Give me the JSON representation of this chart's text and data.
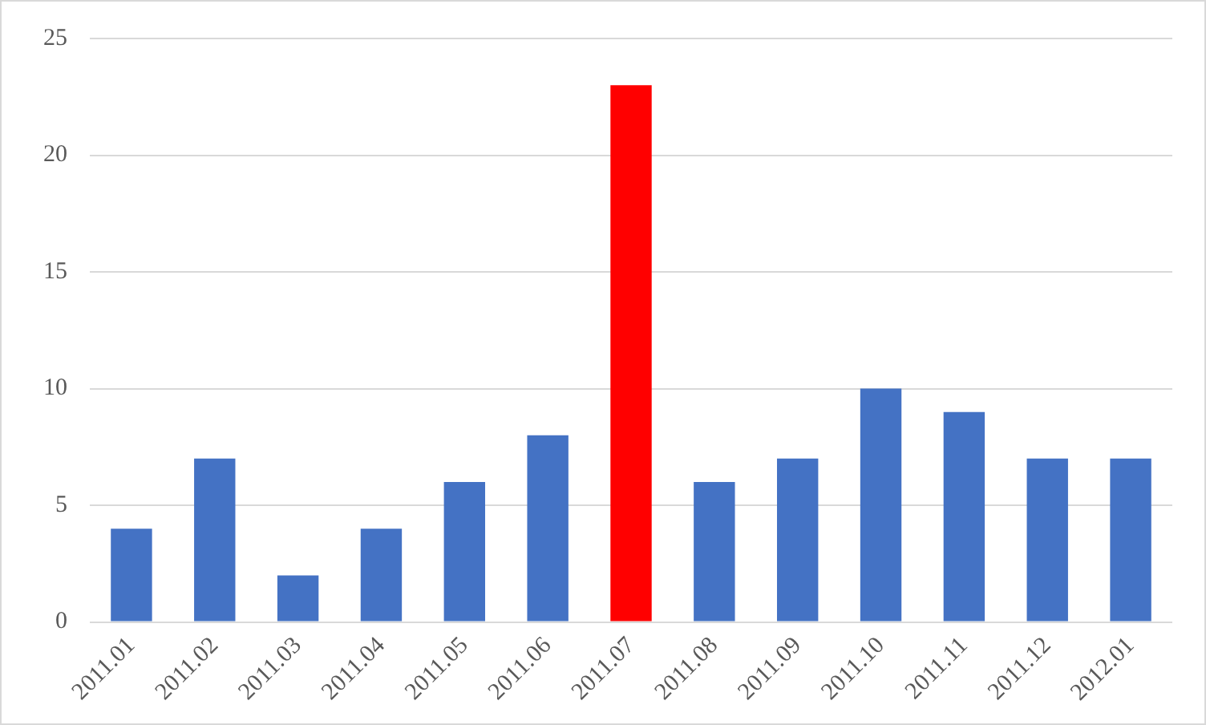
{
  "chart_data": {
    "type": "bar",
    "categories": [
      "2011.01",
      "2011.02",
      "2011.03",
      "2011.04",
      "2011.05",
      "2011.06",
      "2011.07",
      "2011.08",
      "2011.09",
      "2011.10",
      "2011.11",
      "2011.12",
      "2012.01"
    ],
    "values": [
      4,
      7,
      2,
      4,
      6,
      8,
      23,
      6,
      7,
      10,
      9,
      7,
      7
    ],
    "colors": [
      "#4472c4",
      "#4472c4",
      "#4472c4",
      "#4472c4",
      "#4472c4",
      "#4472c4",
      "#ff0000",
      "#4472c4",
      "#4472c4",
      "#4472c4",
      "#4472c4",
      "#4472c4",
      "#4472c4"
    ],
    "ylim": [
      0,
      25
    ],
    "yticks": [
      0,
      5,
      10,
      15,
      20,
      25
    ],
    "grid": "y",
    "legend": false
  }
}
